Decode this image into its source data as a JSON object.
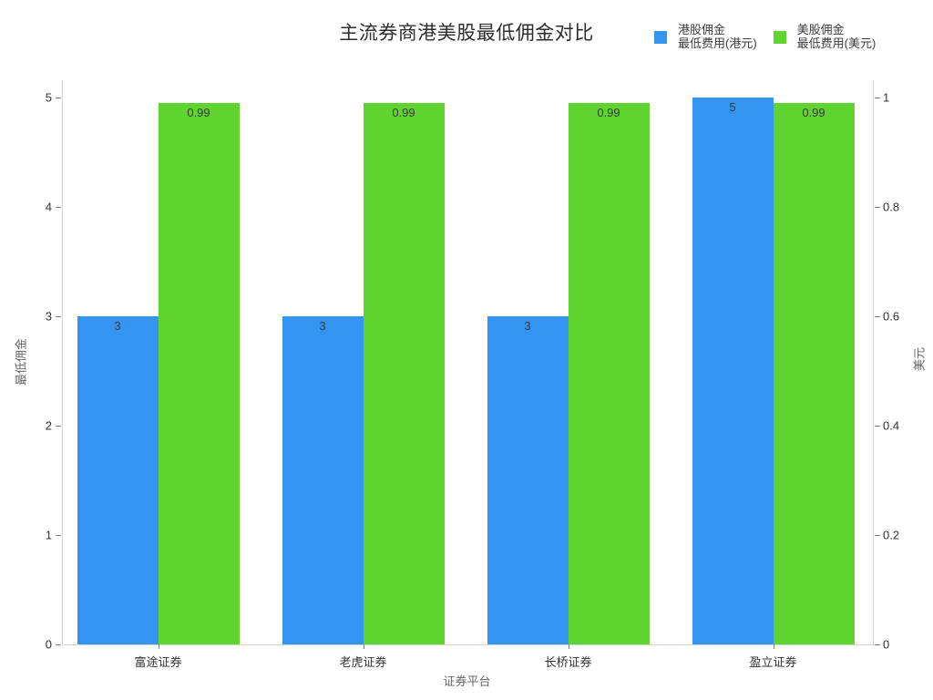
{
  "chart": {
    "title": "主流券商港美股最低佣金对比",
    "x_axis_title": "证券平台",
    "y_axis_left_title": "最低佣金",
    "y_axis_right_title": "美元",
    "legend": [
      {
        "name": "港股佣金",
        "subtitle": "最低费用(港元)",
        "color": "#3394F2"
      },
      {
        "name": "美股佣金",
        "subtitle": "最低费用(美元)",
        "color": "#5FD32E"
      }
    ]
  },
  "chart_data": {
    "type": "bar",
    "title": "主流券商港美股最低佣金对比",
    "categories": [
      "富途证券",
      "老虎证券",
      "长桥证券",
      "盈立证券"
    ],
    "series": [
      {
        "name": "港股佣金 最低费用(港元)",
        "axis": "left",
        "color": "#3394F2",
        "values": [
          3,
          3,
          3,
          5
        ],
        "labels": [
          "3",
          "3",
          "3",
          "5"
        ]
      },
      {
        "name": "美股佣金 最低费用(美元)",
        "axis": "right",
        "color": "#5FD32E",
        "values": [
          0.99,
          0.99,
          0.99,
          0.99
        ],
        "labels": [
          "0.99",
          "0.99",
          "0.99",
          "0.99"
        ]
      }
    ],
    "xlabel": "证券平台",
    "left_axis": {
      "title": "最低佣金",
      "ticks": [
        0,
        1,
        2,
        3,
        4,
        5
      ],
      "max_tick": 5
    },
    "right_axis": {
      "title": "美元",
      "ticks": [
        0,
        0.2,
        0.4,
        0.6,
        0.8,
        1
      ],
      "max_tick": 1
    },
    "grid": false,
    "legend_position": "top-right",
    "value_labels_inside_bar_top": true
  }
}
